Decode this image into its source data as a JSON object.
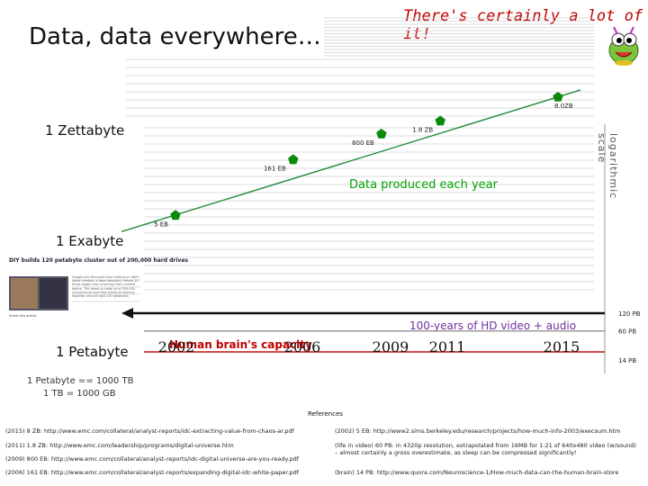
{
  "slide": {
    "title": "Data, data everywhere…",
    "subtitle": "There's certainly a lot of it!",
    "scale_label": "logarithmic scale",
    "y_labels": {
      "zb": "1 Zettabyte",
      "eb": "1 Exabyte",
      "pb": "1 Petabyte"
    },
    "notes": [
      "1 Petabyte == 1000 TB",
      "1 TB = 1000 GB"
    ],
    "thumbnail": {
      "title": "DIY builds 120 petabyte cluster out of 200,000 hard drives",
      "body": "Google and Microsoft have nothing on IBM's latest creation: a data repository almost 10 times bigger than anything that's existed before. This beast is made up of 200,000 conventional hard disk drives all working together and will hold 120 petabytes",
      "caption": "Share this article"
    },
    "references_header": "References",
    "references_left": [
      "(2015) 8 ZB: http://www.emc.com/collateral/analyst-reports/idc-extracting-value-from-chaos-ar.pdf",
      "(2011) 1.8 ZB: http://www.emc.com/leadership/programs/digital-universe.htm",
      "(2009) 800 EB: http://www.emc.com/collateral/analyst-reports/idc-digital-universe-are-you-ready.pdf",
      "(2006) 161 EB: http://www.emc.com/collateral/analyst-reports/expanding-digital-idc-white-paper.pdf"
    ],
    "references_right": [
      "(2002) 5 EB: http://www2.sims.berkeley.edu/research/projects/how-much-info-2003/execsum.htm",
      "(life in video) 60 PB: in 4320p resolution, extrapolated from 16MB for 1:21 of 640x480 video (w/sound) – almost certainly a gross overestimate, as sleep can be compressed significantly!",
      "(brain) 14 PB: http://www.quora.com/Neuroscience-1/How-much-data-can-the-human-brain-store"
    ]
  },
  "colors": {
    "marker": "#0a8a0a",
    "trend": "#1e8a3a",
    "hd_line": "#111111",
    "brain_line": "#c01010",
    "pb_line": "#888888",
    "brain_text": "#c00000",
    "hd_text": "#7030a0",
    "dataprod_text": "#00a000"
  },
  "chart_data": {
    "type": "line",
    "title": "",
    "series_label": "Data produced each year",
    "x_ticks": [
      2002,
      2006,
      2009,
      2011,
      2015
    ],
    "y_scale": "log",
    "series": [
      {
        "x": 2002,
        "y_bytes": 5e+18,
        "label": "5 EB"
      },
      {
        "x": 2006,
        "y_bytes": 1.61e+20,
        "label": "161 EB"
      },
      {
        "x": 2009,
        "y_bytes": 8e+20,
        "label": "800 EB"
      },
      {
        "x": 2011,
        "y_bytes": 1.8e+21,
        "label": "1.8 ZB"
      },
      {
        "x": 2015,
        "y_bytes": 8e+21,
        "label": "8.0ZB"
      }
    ],
    "reference_lines": [
      {
        "name": "100-years of HD video + audio",
        "y_bytes": 1.2e+17,
        "label": "120 PB"
      },
      {
        "name": "",
        "y_bytes": 6e+16,
        "label": "60 PB"
      },
      {
        "name": "Human brain's capacity",
        "y_bytes": 1.4e+16,
        "label": "14 PB"
      }
    ]
  }
}
